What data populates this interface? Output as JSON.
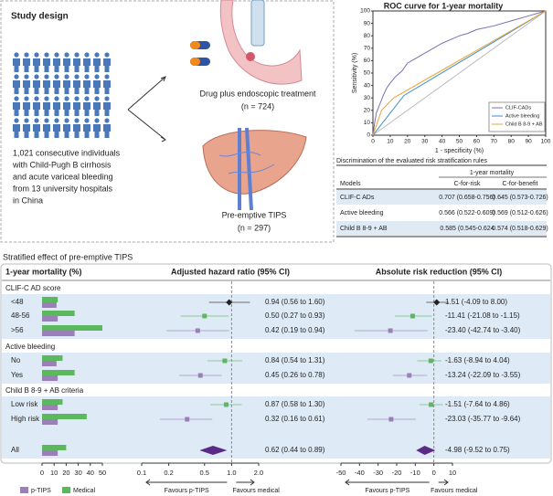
{
  "study_design": {
    "title": "Study design",
    "population": [
      "1,021 consecutive individuals",
      "with Child-Pugh B cirrhosis",
      "and acute variceal bleeding",
      "from 13 university hospitals",
      "in China"
    ],
    "arms": [
      {
        "label": "Drug plus endoscopic treatment",
        "n": "(n = 724)"
      },
      {
        "label": "Pre-emptive TIPS",
        "n": "(n = 297)"
      }
    ]
  },
  "risk_table": {
    "title": "Discrimination of the evaluated risk stratification rules",
    "group_header": "1-year mortality",
    "columns": [
      "Models",
      "C-for-risk",
      "C-for-benefit"
    ],
    "rows": [
      [
        "CLIF-C ADs",
        "0.707 (0.658-0.756)",
        "0.645 (0.573-0.726)"
      ],
      [
        "Active bleeding",
        "0.566 (0.522-0.609)",
        "0.569 (0.512-0.626)"
      ],
      [
        "Child B 8-9 + AB",
        "0.585 (0.545-0.624",
        "0.574 (0.518-0.629)"
      ]
    ]
  },
  "stratified": {
    "title": "Stratified effect of pre-emptive TIPS"
  },
  "chart_data": [
    {
      "type": "line",
      "title": "ROC curve for 1-year mortality",
      "xlabel": "1 - specificity  (%)",
      "ylabel": "Sensitivity (%)",
      "xlim": [
        0,
        100
      ],
      "ylim": [
        0,
        100
      ],
      "xticks": [
        0,
        10,
        20,
        30,
        40,
        50,
        60,
        70,
        80,
        90,
        100
      ],
      "yticks": [
        0,
        10,
        20,
        30,
        40,
        50,
        60,
        70,
        80,
        90,
        100
      ],
      "legend": "lower right",
      "series": [
        {
          "name": "CLIF-CADs",
          "color": "#7b6fb0",
          "x": [
            0,
            1,
            2,
            4,
            6,
            8,
            10,
            13,
            17,
            20,
            25,
            30,
            35,
            40,
            45,
            50,
            55,
            60,
            70,
            80,
            90,
            100
          ],
          "values": [
            0,
            10,
            18,
            25,
            32,
            38,
            42,
            47,
            52,
            58,
            62,
            66,
            70,
            74,
            77,
            80,
            82,
            85,
            88,
            92,
            96,
            100
          ]
        },
        {
          "name": "Active bleeding",
          "color": "#3a8fd0",
          "x": [
            0,
            18,
            100
          ],
          "values": [
            0,
            32,
            100
          ]
        },
        {
          "name": "Child B 8-9 + AB",
          "color": "#f0a030",
          "x": [
            0,
            5,
            12,
            100
          ],
          "values": [
            0,
            20,
            30,
            100
          ]
        }
      ]
    },
    {
      "type": "hbar",
      "title": "1-year mortality (%)",
      "categories": [
        "CLIF-C AD score",
        "<48",
        "48-56",
        ">56",
        "Active bleeding",
        "No",
        "Yes",
        "Child B 8-9 + AB criteria",
        "Low risk",
        "High risk",
        "All"
      ],
      "xlim": [
        0,
        50
      ],
      "xticks": [
        0,
        10,
        20,
        30,
        40,
        50
      ],
      "legend": "bottom",
      "series": [
        {
          "name": "Medical",
          "color": "#5cb85c",
          "values": [
            null,
            13,
            27,
            50,
            null,
            17,
            27,
            null,
            17,
            37,
            20
          ]
        },
        {
          "name": "p-TIPS",
          "color": "#9b7fb8",
          "values": [
            null,
            12,
            13,
            27,
            null,
            12,
            13,
            null,
            13,
            13,
            13
          ]
        }
      ]
    },
    {
      "type": "forest",
      "title": "Adjusted hazard ratio (95% CI)",
      "log_x": true,
      "xlim": [
        0.1,
        2
      ],
      "xticks": [
        0.1,
        0.2,
        0.5,
        {
          "value": 1,
          "label": "1.0"
        },
        {
          "value": 2,
          "label": "2.0"
        }
      ],
      "reference": 1,
      "direction_labels": [
        "Favours p-TIPS",
        "Favours medical"
      ],
      "values": [
        null,
        0.94,
        0.5,
        0.42,
        null,
        0.84,
        0.45,
        null,
        0.87,
        0.32,
        0.62
      ],
      "lower": [
        null,
        0.56,
        0.27,
        0.19,
        null,
        0.54,
        0.26,
        null,
        0.58,
        0.16,
        0.44
      ],
      "upper": [
        null,
        1.6,
        0.93,
        0.94,
        null,
        1.31,
        0.78,
        null,
        1.3,
        0.61,
        0.89
      ],
      "value_labels": [
        null,
        "0.94 (0.56 to 1.60)",
        "0.50 (0.27 to 0.93)",
        "0.42 (0.19 to 0.94)",
        null,
        "0.84 (0.54 to 1.31)",
        "0.45 (0.26 to 0.78)",
        null,
        "0.87 (0.58 to 1.30)",
        "0.32 (0.16 to 0.61)",
        "0.62 (0.44 to 0.89)"
      ],
      "point_colors": [
        null,
        "#222222",
        "#5cb85c",
        "#9b7fb8",
        null,
        "#5cb85c",
        "#9b7fb8",
        null,
        "#5cb85c",
        "#9b7fb8",
        "#5b2a86"
      ]
    },
    {
      "type": "forest",
      "title": "Absolute risk reduction (95% CI)",
      "log_x": false,
      "xlim": [
        -50,
        10
      ],
      "xticks": [
        -50,
        -40,
        -30,
        -20,
        -10,
        0,
        10
      ],
      "reference": 0,
      "direction_labels": [
        "Favours p-TIPS",
        "Favours medical"
      ],
      "values": [
        null,
        1.51,
        -11.41,
        -23.4,
        null,
        -1.63,
        -13.24,
        null,
        -1.51,
        -23.03,
        -4.98
      ],
      "lower": [
        null,
        -4.09,
        -21.08,
        -42.74,
        null,
        -8.94,
        -22.09,
        null,
        -7.64,
        -35.77,
        -9.52
      ],
      "upper": [
        null,
        8,
        -1.15,
        -3.4,
        null,
        4.04,
        -3.55,
        null,
        4.86,
        -9.64,
        0.75
      ],
      "value_labels": [
        null,
        "1.51 (-4.09 to 8.00)",
        "-11.41 (-21.08 to -1.15)",
        "-23.40 (-42.74 to -3.40)",
        null,
        "-1.63 (-8.94 to 4.04)",
        "-13.24 (-22.09 to -3.55)",
        null,
        "-1.51 (-7.64 to 4.86)",
        "-23.03 (-35.77 to -9.64)",
        "-4.98 (-9.52 to 0.75)"
      ],
      "point_colors": [
        null,
        "#222222",
        "#5cb85c",
        "#9b7fb8",
        null,
        "#5cb85c",
        "#9b7fb8",
        null,
        "#5cb85c",
        "#9b7fb8",
        "#5b2a86"
      ]
    }
  ]
}
